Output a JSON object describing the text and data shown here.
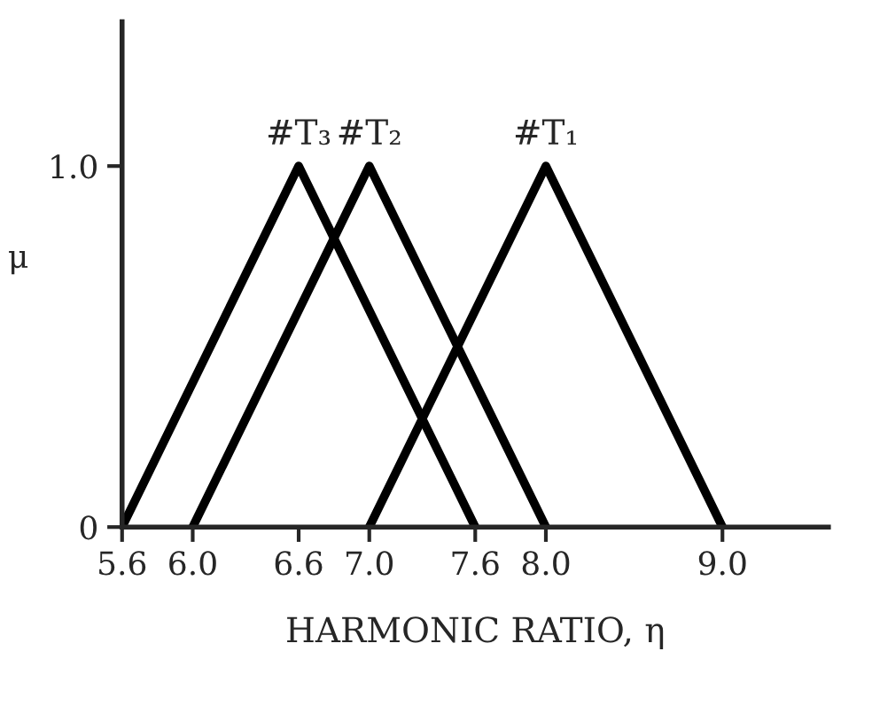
{
  "chart_data": {
    "type": "line",
    "xlabel": "HARMONIC RATIO, η",
    "ylabel": "μ",
    "series": [
      {
        "name": "#T₃",
        "color": "#000000",
        "x": [
          5.6,
          6.6,
          7.6
        ],
        "values": [
          0,
          1.0,
          0
        ]
      },
      {
        "name": "#T₂",
        "color": "#000000",
        "x": [
          6.0,
          7.0,
          8.0
        ],
        "values": [
          0,
          1.0,
          0
        ]
      },
      {
        "name": "#T₁",
        "color": "#000000",
        "x": [
          7.0,
          8.0,
          9.0
        ],
        "values": [
          0,
          1.0,
          0
        ]
      }
    ],
    "xlim": [
      5.6,
      9.6
    ],
    "ylim": [
      0,
      1.4
    ],
    "xticks": [
      5.6,
      {
        "value": 6.0,
        "label": "6.0"
      },
      6.6,
      {
        "value": 7.0,
        "label": "7.0"
      },
      7.6,
      {
        "value": 8.0,
        "label": "8.0"
      },
      {
        "value": 9.0,
        "label": "9.0"
      }
    ],
    "yticks": [
      0,
      {
        "value": 1.0,
        "label": "1.0"
      }
    ],
    "grid": false,
    "legend": false,
    "marker": "none",
    "line_style": "solid"
  }
}
